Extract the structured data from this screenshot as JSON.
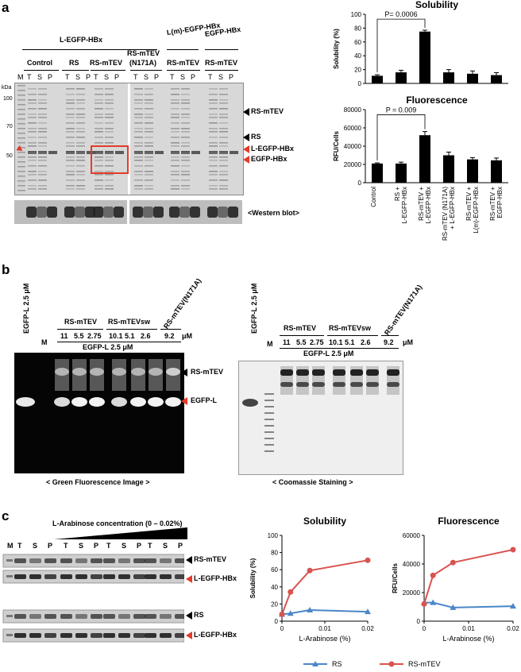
{
  "panel_a": {
    "letter": "a",
    "gel": {
      "group_labels": [
        "L-EGFP-HBx",
        "L(m)-EGFP-HBx",
        "EGFP-HBx"
      ],
      "condition_labels": [
        "Control",
        "RS",
        "RS-mTEV",
        "RS-mTEV\n(N171A)",
        "RS-mTEV",
        "RS-mTEV"
      ],
      "condition_label_line1": "RS-mTEV",
      "condition_label_line2": "(N171A)",
      "lane_letters": [
        "T",
        "S",
        "P"
      ],
      "marker": "M",
      "kda_label": "kDa",
      "kda_ticks": [
        "100",
        "70",
        "50"
      ],
      "right_labels": [
        "RS-mTEV",
        "RS",
        "L-EGFP-HBx",
        "EGFP-HBx"
      ],
      "western_label": "<Western blot>"
    },
    "charts": [
      {
        "type": "bar",
        "title": "Solubility",
        "ylabel": "Solubility (%)",
        "ylim": [
          0,
          100
        ],
        "yticks": [
          "0",
          "20",
          "40",
          "60",
          "80",
          "100"
        ],
        "categories": [
          "Control",
          "RS +\nL-EGFP-HBx",
          "RS-mTEV +\nL-EGFP-HBx",
          "RS-mTEV (N171A)\n+ L-EGFP-HBx",
          "RS-mTEV +\nL(m)-EGFP-HBx",
          "RS-mTEV +\nEGFP-HBx"
        ],
        "values": [
          11,
          16,
          75,
          16,
          14,
          12
        ],
        "errors": [
          1.5,
          3,
          2,
          4,
          4,
          3.5
        ],
        "annotation": "P= 0.0006"
      },
      {
        "type": "bar",
        "title": "Fluorescence",
        "ylabel": "RFU/Cells",
        "ylim": [
          0,
          80000
        ],
        "yticks": [
          "0",
          "20000",
          "40000",
          "60000",
          "80000"
        ],
        "categories": [
          "Control",
          "RS +\nL-EGFP-HBx",
          "RS-mTEV +\nL-EGFP-HBx",
          "RS-mTEV (N171A)\n+ L-EGFP-HBx",
          "RS-mTEV +\nL(m)-EGFP-HBx",
          "RS-mTEV +\nEGFP-HBx"
        ],
        "values": [
          21000,
          21000,
          52000,
          30000,
          25500,
          24500
        ],
        "errors": [
          700,
          1500,
          4000,
          3500,
          2000,
          2500
        ],
        "annotation": "P = 0.009"
      }
    ],
    "x_category_labels": [
      [
        "Control"
      ],
      [
        "RS +",
        "L-EGFP-HBx"
      ],
      [
        "RS-mTEV +",
        "L-EGFP-HBx"
      ],
      [
        "RS-mTEV (N171A)",
        "+ L-EGFP-HBx"
      ],
      [
        "RS-mTEV +",
        "L(m)-EGFP-HBx"
      ],
      [
        "RS-mTEV +",
        "EGFP-HBx"
      ]
    ]
  },
  "panel_b": {
    "letter": "b",
    "egfp_l_side": "EGFP-L  2.5 μM",
    "marker": "M",
    "group_labels": [
      "RS-mTEV",
      "RS-mTEVsw"
    ],
    "rotated_label": "RS-mTEV(N171A)",
    "concentrations": [
      "11",
      "5.5",
      "2.75",
      "10.1",
      "5.1",
      "2.6",
      "9.2"
    ],
    "unit": "μM",
    "egfp_l_bottom": "EGFP-L  2.5 μM",
    "arrow_labels": [
      "RS-mTEV",
      "EGFP-L"
    ],
    "caption_left": "< Green Fluorescence Image >",
    "caption_right": "< Coomassie Staining >"
  },
  "panel_c": {
    "letter": "c",
    "arabinose_label": "L-Arabinose concentration (0 – 0.02%)",
    "marker": "M",
    "lane_letters": [
      "T",
      "S",
      "P"
    ],
    "right_labels": [
      "RS-mTEV",
      "L-EGFP-HBx",
      "RS",
      "L-EGFP-HBx"
    ],
    "charts": [
      {
        "type": "line",
        "title": "Solubility",
        "xlabel": "L-Arabinose (%)",
        "ylabel": "Solubility (%)",
        "xlim": [
          0,
          0.02
        ],
        "ylim": [
          0,
          100
        ],
        "xticks": [
          "0",
          "0.01",
          "0.02"
        ],
        "yticks": [
          "0",
          "20",
          "40",
          "60",
          "80",
          "100"
        ],
        "series": [
          {
            "name": "RS",
            "color": "#4a86c8",
            "x": [
              0,
              0.002,
              0.0065,
              0.02
            ],
            "y": [
              8,
              9,
              13,
              11
            ]
          },
          {
            "name": "RS-mTEV",
            "color": "#d9534f",
            "x": [
              0,
              0.002,
              0.0065,
              0.02
            ],
            "y": [
              8,
              34,
              59,
              71
            ]
          }
        ]
      },
      {
        "type": "line",
        "title": "Fluorescence",
        "xlabel": "L-Arabinose (%)",
        "ylabel": "RFU/Cells",
        "xlim": [
          0,
          0.02
        ],
        "ylim": [
          0,
          60000
        ],
        "xticks": [
          "0",
          "0.01",
          "0.02"
        ],
        "yticks": [
          "0",
          "20000",
          "40000",
          "60000"
        ],
        "series": [
          {
            "name": "RS",
            "color": "#4a86c8",
            "x": [
              0,
              0.002,
              0.0065,
              0.02
            ],
            "y": [
              13000,
              13000,
              9500,
              10500
            ]
          },
          {
            "name": "RS-mTEV",
            "color": "#d9534f",
            "x": [
              0,
              0.002,
              0.0065,
              0.02
            ],
            "y": [
              12000,
              32000,
              41000,
              50000
            ]
          }
        ]
      }
    ],
    "legend": [
      "RS",
      "RS-mTEV"
    ]
  },
  "colors": {
    "red": "#e53a2a",
    "blue": "#4a86c8",
    "line_red": "#d9534f"
  }
}
